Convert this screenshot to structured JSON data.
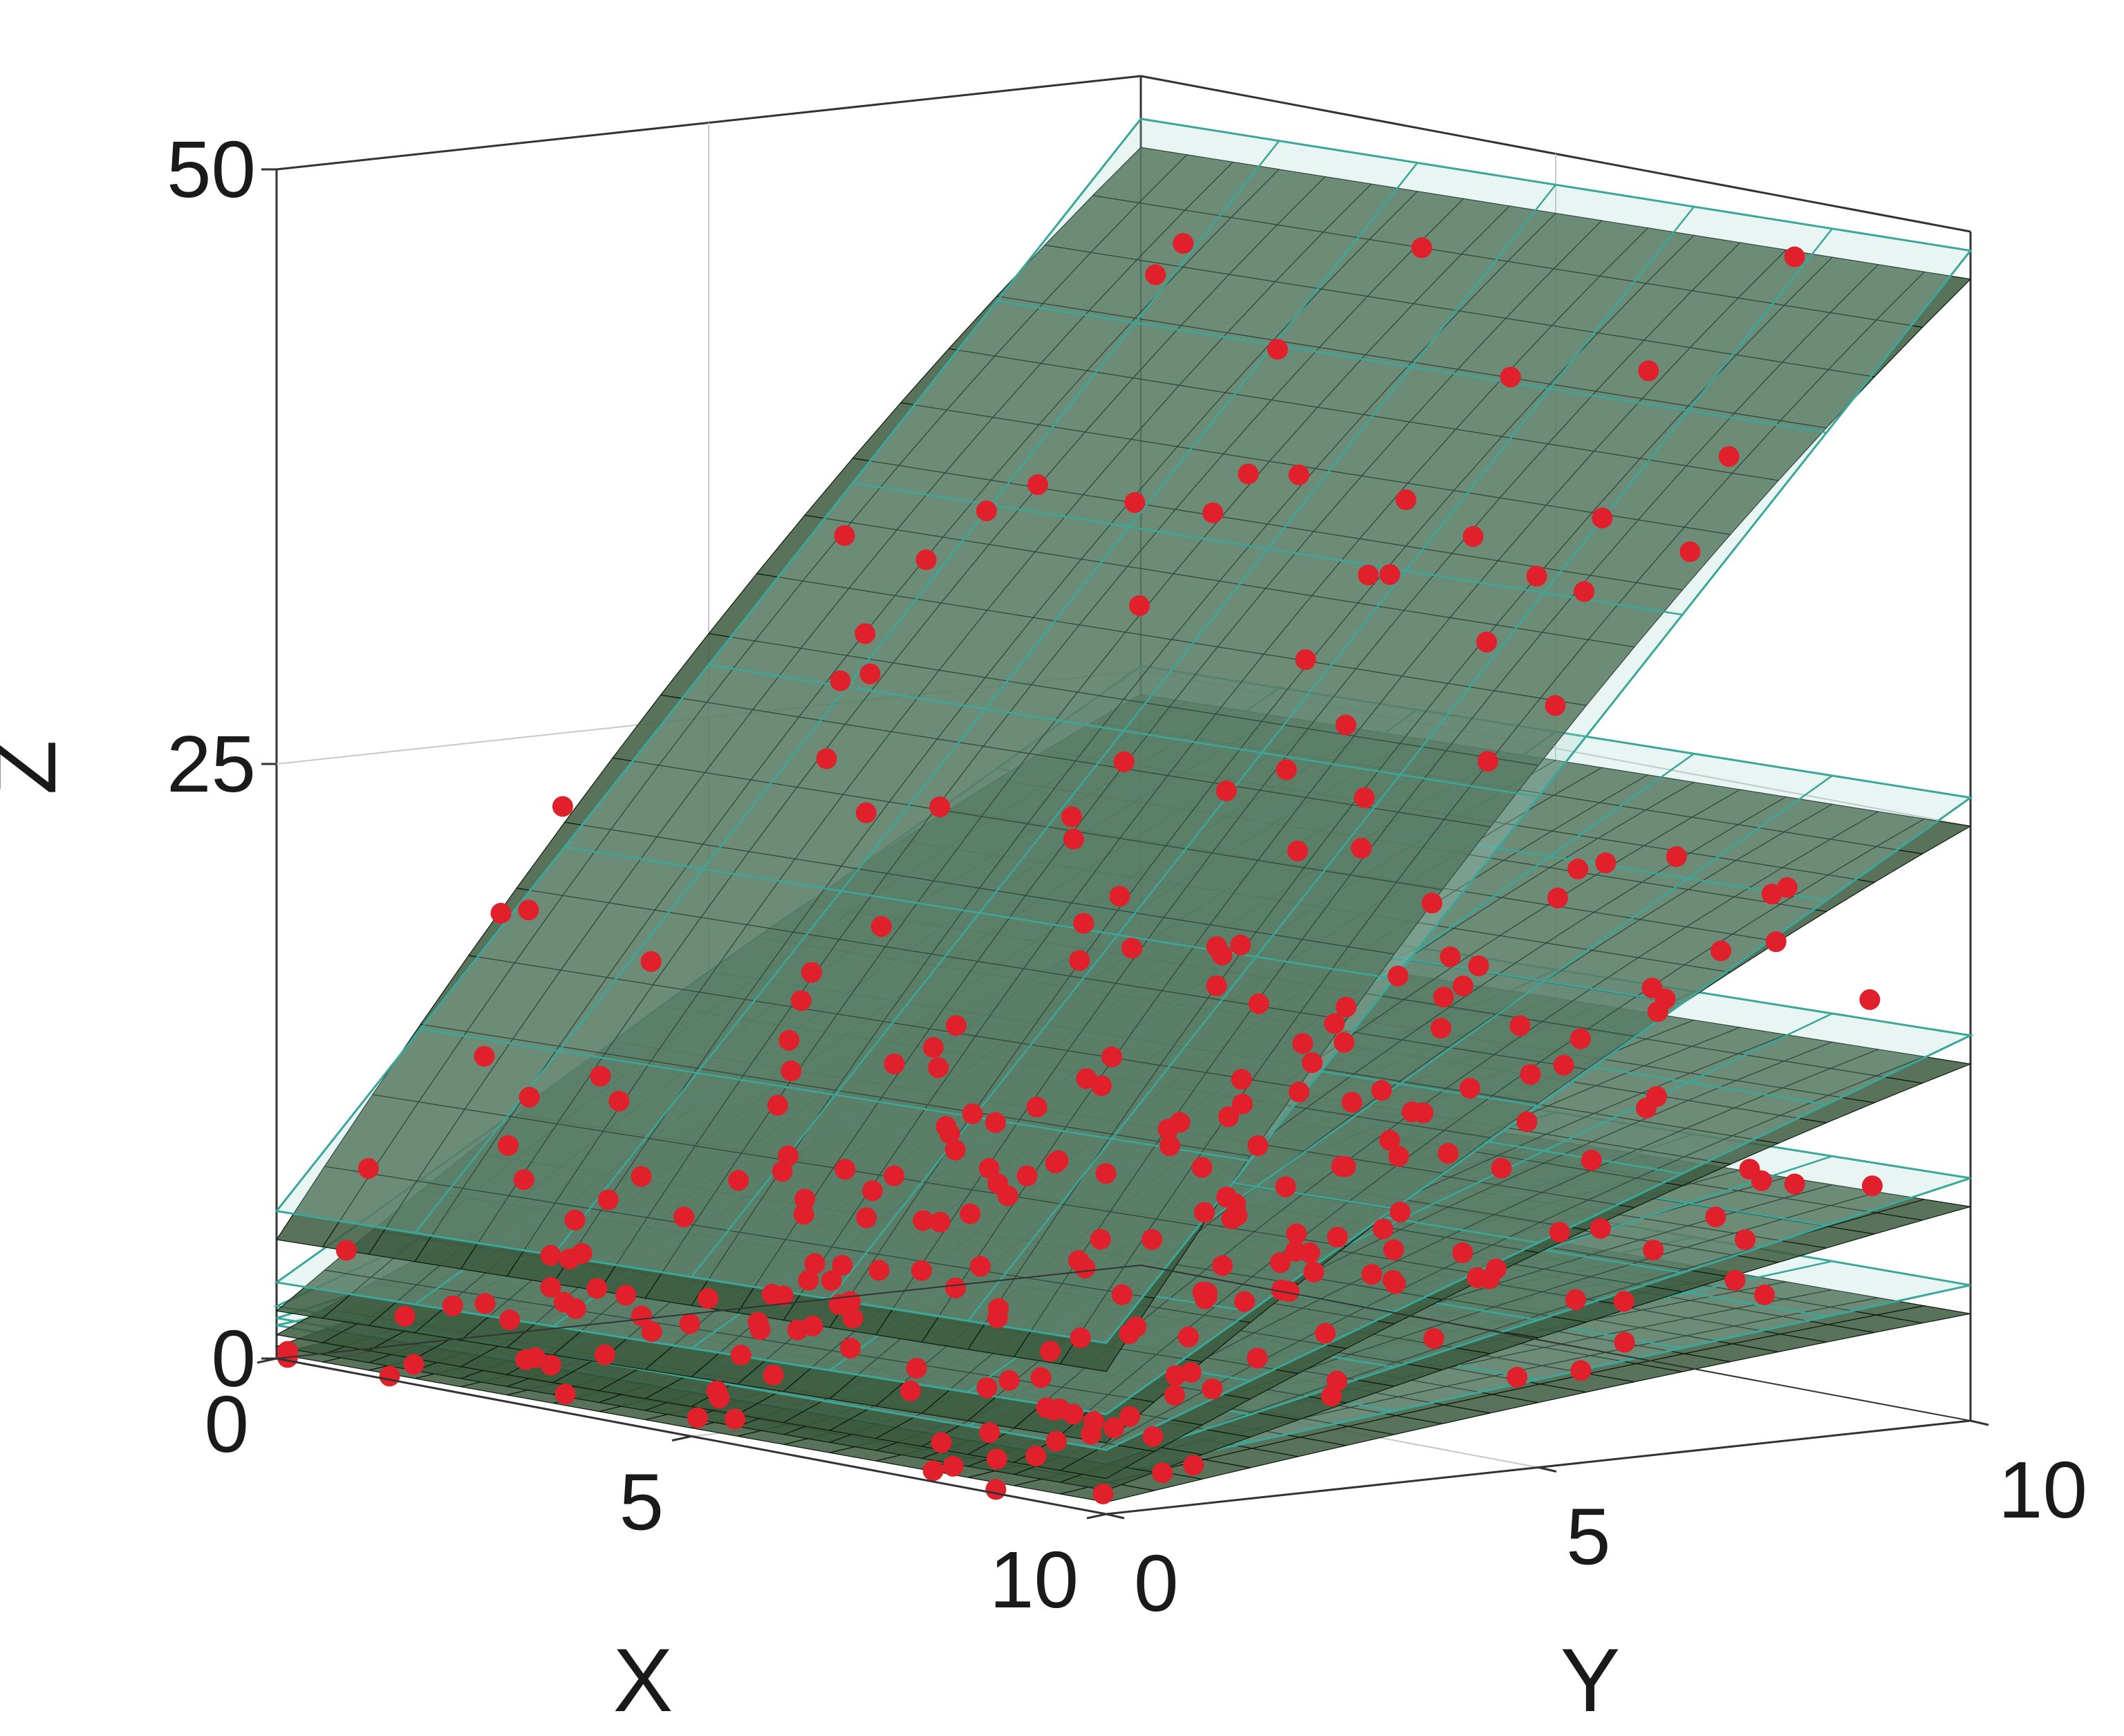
{
  "chart_data": {
    "type": "surface3d",
    "axes": {
      "x": {
        "label": "X",
        "range": [
          0,
          10
        ],
        "ticks": [
          0,
          5,
          10
        ],
        "tick_labels": [
          "0",
          "5",
          "10"
        ]
      },
      "y": {
        "label": "Y",
        "range": [
          0,
          10
        ],
        "ticks": [
          0,
          5,
          10
        ],
        "tick_labels": [
          "0",
          "5",
          "10"
        ]
      },
      "z": {
        "label": "Z",
        "range": [
          0,
          50
        ],
        "ticks": [
          0,
          25,
          50
        ],
        "tick_labels": [
          "0",
          "25",
          "50"
        ]
      }
    },
    "grid": true,
    "surfaces": [
      {
        "corner_z": {
          "x0y0": 5.0,
          "x10y0": 6.0,
          "x0y10": 47.0,
          "x10y10": 48.0
        }
      },
      {
        "corner_z": {
          "x0y0": 2.0,
          "x10y0": 3.0,
          "x0y10": 24.0,
          "x10y10": 25.0
        }
      },
      {
        "corner_z": {
          "x0y0": 1.0,
          "x10y0": 1.5,
          "x0y10": 14.0,
          "x10y10": 15.0
        }
      },
      {
        "corner_z": {
          "x0y0": 0.5,
          "x10y0": 1.0,
          "x0y10": 8.0,
          "x10y10": 9.0
        }
      },
      {
        "corner_z": {
          "x0y0": 0.2,
          "x10y0": 0.5,
          "x0y10": 4.0,
          "x10y10": 4.5
        }
      }
    ],
    "points": {
      "per_surface": 60,
      "noise_z": 3.0
    },
    "colors": {
      "surface_fill": "#3c5a3e",
      "surface_mesh": "#0d1a0d",
      "fit_plane_edge": "#3aa79a",
      "fit_plane_fill": "#a9d9cf",
      "points": "#e0202a",
      "box": "#333333",
      "gridline": "#c8c8c8"
    }
  }
}
